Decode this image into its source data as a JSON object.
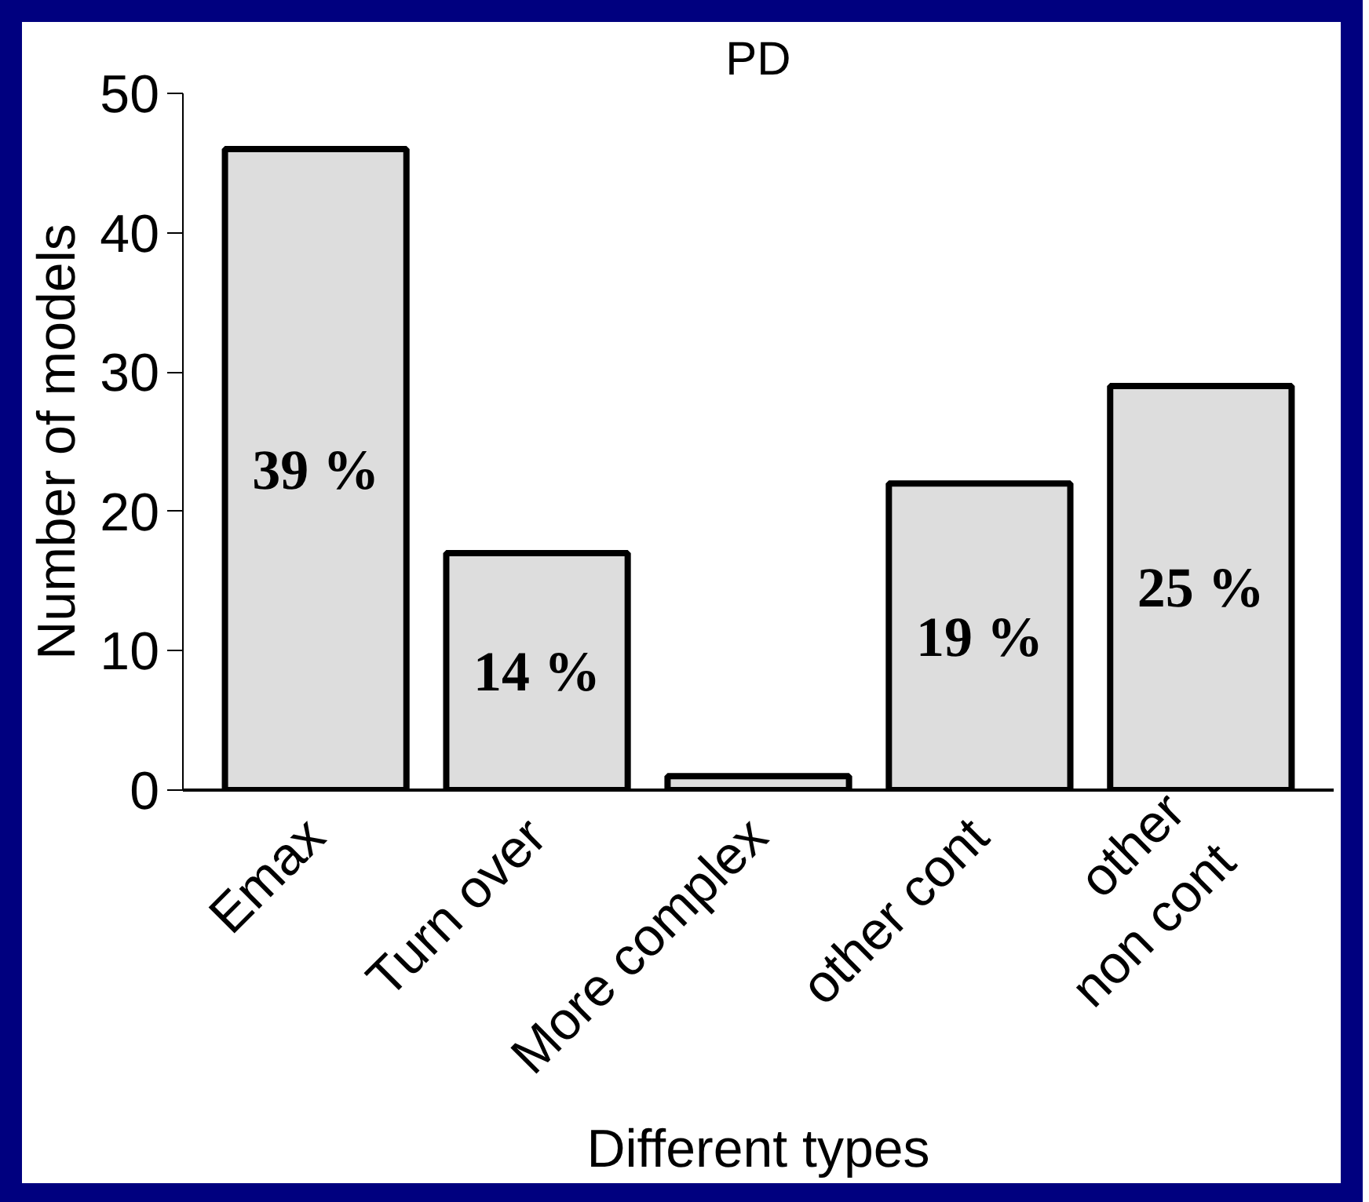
{
  "chart_data": {
    "type": "bar",
    "title": "PD",
    "xlabel": "Different types",
    "ylabel": "Number of models",
    "categories": [
      "Emax",
      "Turn over",
      "More complex",
      "other cont",
      "other\nnon cont"
    ],
    "values": [
      46,
      17,
      1,
      22,
      29
    ],
    "annotations": [
      "39 %",
      "14 %",
      "19 %",
      "25 %"
    ],
    "color": "#dddddd",
    "ylim": [
      0,
      50
    ],
    "yticks": [
      0,
      10,
      20,
      30,
      40,
      50
    ],
    "grid": false
  }
}
